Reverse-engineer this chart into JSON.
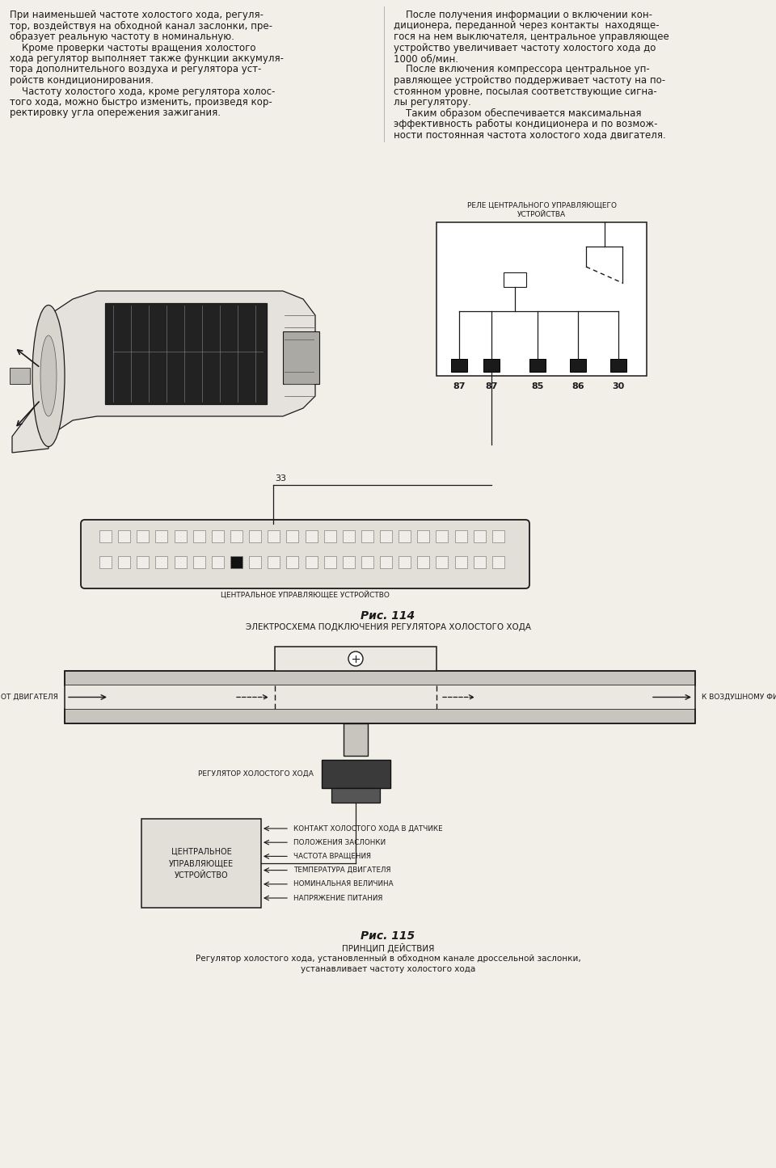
{
  "bg_color": "#f2efe9",
  "text_color": "#1a1a1a",
  "connector_labels": [
    "87",
    "87",
    "85",
    "86",
    "30"
  ],
  "ecu_label": "ЦЕНТРАЛЬНОЕ УПРАВЛЯЮЩЕЕ УСТРОЙСТВО",
  "fig114_label": "Рис. 114",
  "fig114_caption": "ЭЛЕКТРОСХЕМА ПОДКЛЮЧЕНИЯ РЕГУЛЯТОРА ХОЛОСТОГО ХОДА",
  "from_engine": "ОТ ДВИГАТЕЛЯ",
  "to_filter": "К ВОЗДУШНОМУ ФИЛЬТРУ",
  "idle_reg_label": "РЕГУЛЯТОР ХОЛОСТОГО ХОДА",
  "ecu2_label": "ЦЕНТРАЛЬНОЕ\nУПРАВЛЯЮЩЕЕ\nУСТРОЙСТВО",
  "signals": [
    "КОНТАКТ ХОЛОСТОГО ХОДА В ДАТЧИКЕ",
    "ПОЛОЖЕНИЯ ЗАСЛОНКИ",
    "ЧАСТОТА ВРАЩЕНИЯ",
    "ТЕМПЕРАТУРА ДВИГАТЕЛЯ",
    "НОМИНАЛЬНАЯ ВЕЛИЧИНА",
    "НАПРЯЖЕНИЕ ПИТАНИЯ"
  ],
  "fig115_label": "Рис. 115",
  "fig115_title": "ПРИНЦИП ДЕЙСТВИЯ",
  "fig115_caption1": "Регулятор холостого хода, установленный в обходном канале дроссельной заслонки,",
  "fig115_caption2": "устанавливает частоту холостого хода"
}
